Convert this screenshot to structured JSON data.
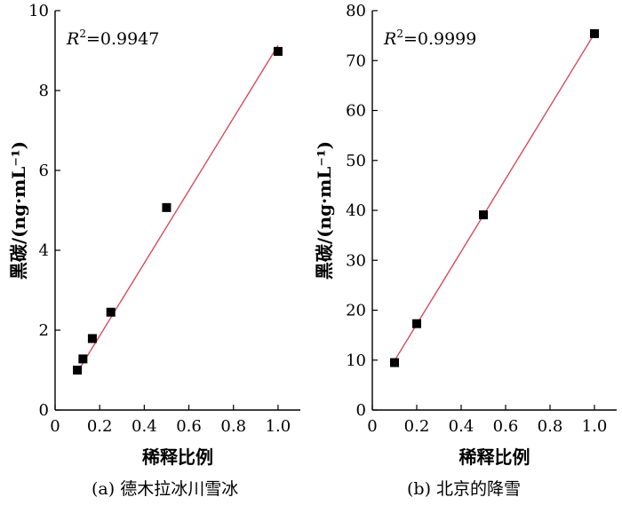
{
  "chart_data": [
    {
      "type": "scatter",
      "caption": "(a) 德木拉冰川雪冰",
      "xlabel": "稀释比例",
      "ylabel": "黑碳/(ng·mL⁻¹)",
      "annotation": {
        "var": "R",
        "sup": "2",
        "value": "=0.9947"
      },
      "xlim": [
        0,
        1.1
      ],
      "ylim": [
        0,
        10
      ],
      "xticks": [
        "0",
        "0.2",
        "0.4",
        "0.6",
        "0.8",
        "1.0"
      ],
      "yticks": [
        "0",
        "2",
        "4",
        "6",
        "8",
        "10"
      ],
      "series": [
        {
          "points": [
            {
              "x": 0.1,
              "y": 1.0
            },
            {
              "x": 0.125,
              "y": 1.28
            },
            {
              "x": 0.167,
              "y": 1.79
            },
            {
              "x": 0.25,
              "y": 2.45
            },
            {
              "x": 0.5,
              "y": 5.07
            },
            {
              "x": 1.0,
              "y": 8.98
            }
          ],
          "marker_color": "#000000"
        }
      ],
      "fit_line": {
        "x": [
          0.1,
          1.0
        ],
        "y": [
          0.95,
          9.13
        ],
        "color": "#d94a5c"
      },
      "grid": false
    },
    {
      "type": "scatter",
      "caption": "(b) 北京的降雪",
      "xlabel": "稀释比例",
      "ylabel": "黑碳/(ng·mL⁻¹)",
      "annotation": {
        "var": "R",
        "sup": "2",
        "value": "=0.9999"
      },
      "xlim": [
        0,
        1.1
      ],
      "ylim": [
        0,
        80
      ],
      "xticks": [
        "0",
        "0.2",
        "0.4",
        "0.6",
        "0.8",
        "1.0"
      ],
      "yticks": [
        "0",
        "10",
        "20",
        "30",
        "40",
        "50",
        "60",
        "70",
        "80"
      ],
      "series": [
        {
          "points": [
            {
              "x": 0.1,
              "y": 9.5
            },
            {
              "x": 0.2,
              "y": 17.3
            },
            {
              "x": 0.5,
              "y": 39.1
            },
            {
              "x": 1.0,
              "y": 75.4
            }
          ],
          "marker_color": "#000000"
        }
      ],
      "fit_line": {
        "x": [
          0.1,
          1.0
        ],
        "y": [
          9.9,
          75.4
        ],
        "color": "#d94a5c"
      },
      "grid": false
    }
  ]
}
